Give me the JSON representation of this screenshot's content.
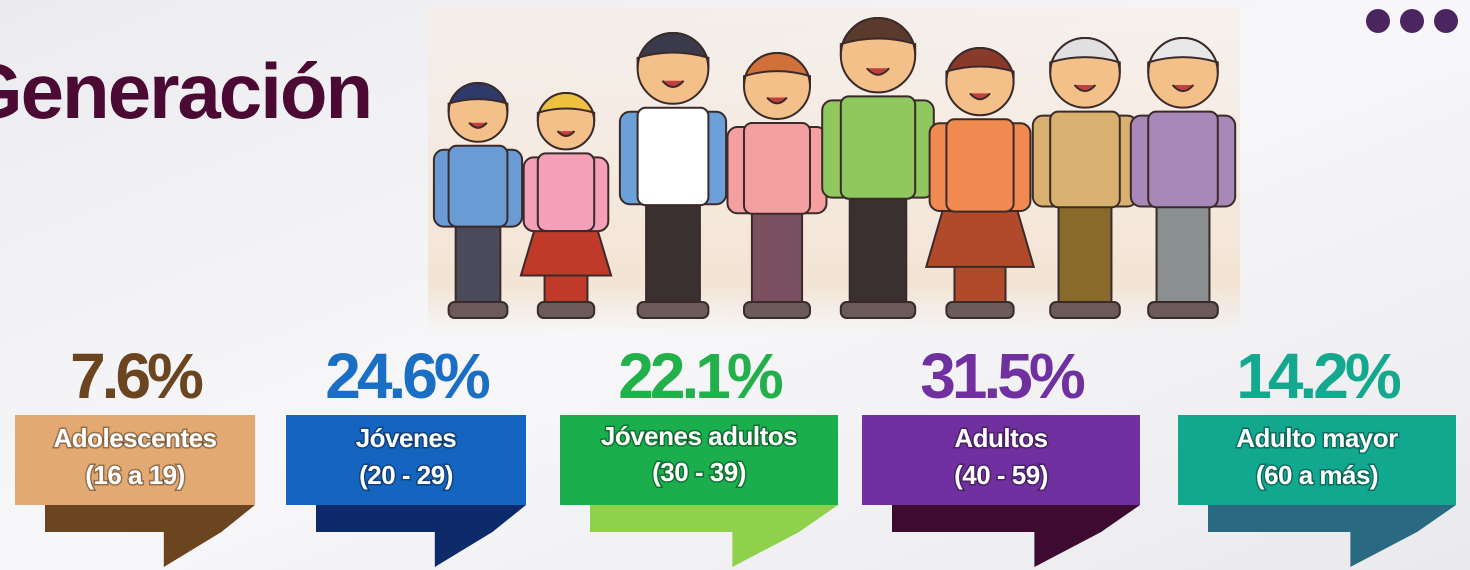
{
  "title": "Generación",
  "items": [
    {
      "percent": "7.6%",
      "label": "Adolescentes",
      "range": "(16 a 19)"
    },
    {
      "percent": "24.6%",
      "label": "Jóvenes",
      "range": "(20 - 29)"
    },
    {
      "percent": "22.1%",
      "label": "Jóvenes adultos",
      "range": "(30 - 39)"
    },
    {
      "percent": "31.5%",
      "label": "Adultos",
      "range": "(40 - 59)"
    },
    {
      "percent": "14.2%",
      "label": "Adulto mayor",
      "range": "(60 a más)"
    }
  ]
}
